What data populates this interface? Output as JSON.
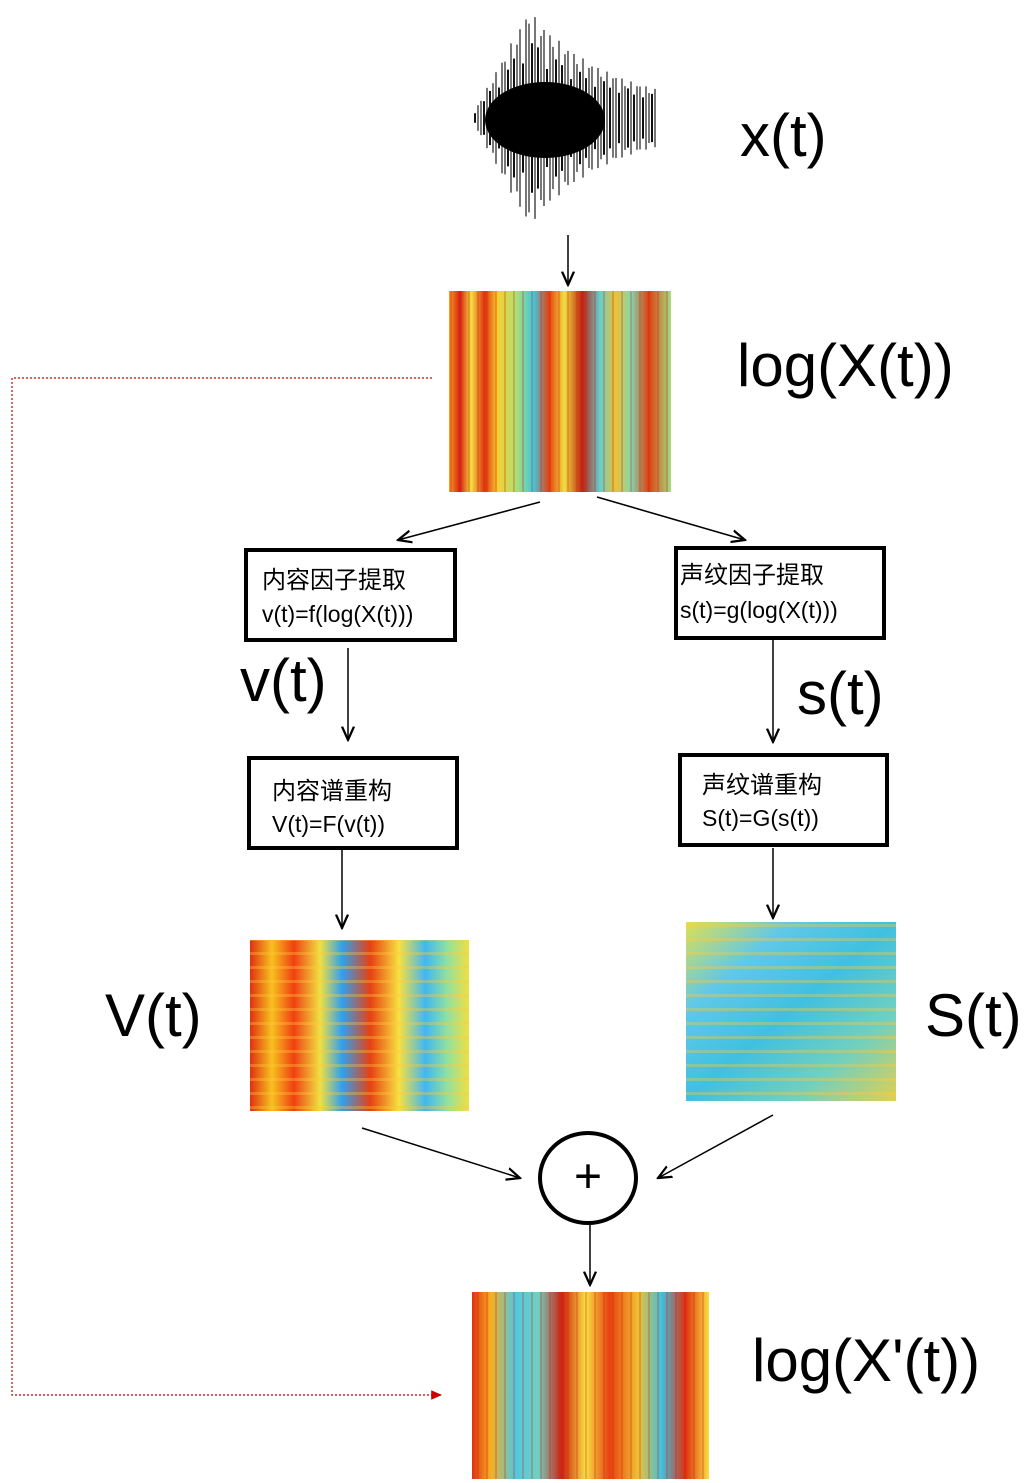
{
  "signal_label": "x(t)",
  "spectrogram_label": "log(X(t))",
  "content_extract": {
    "title": "内容因子提取",
    "formula": "v(t)=f(log(X(t)))"
  },
  "speaker_extract": {
    "title": "声纹因子提取",
    "formula": "s(t)=g(log(X(t)))"
  },
  "content_factor_label": "v(t)",
  "speaker_factor_label": "s(t)",
  "content_reconstruct": {
    "title": "内容谱重构",
    "formula": "V(t)=F(v(t))"
  },
  "speaker_reconstruct": {
    "title": "声纹谱重构",
    "formula": "S(t)=G(s(t))"
  },
  "content_spectrum_label": "V(t)",
  "speaker_spectrum_label": "S(t)",
  "combine_symbol": "+",
  "output_label": "log(X'(t))"
}
